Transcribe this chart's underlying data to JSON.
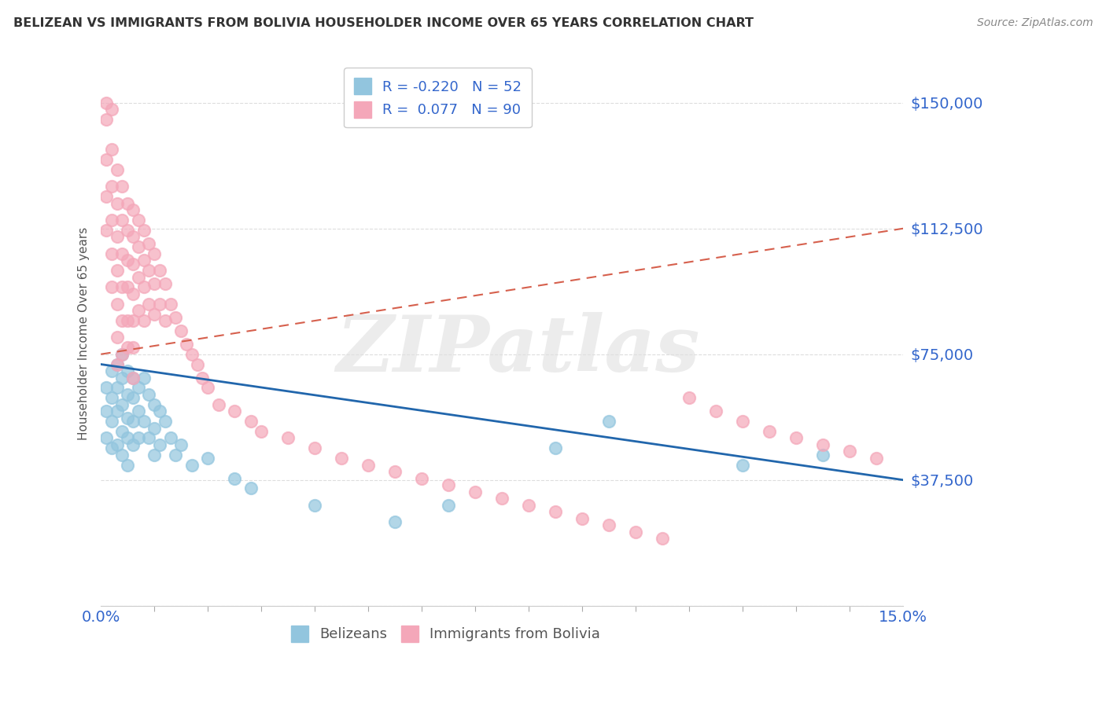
{
  "title": "BELIZEAN VS IMMIGRANTS FROM BOLIVIA HOUSEHOLDER INCOME OVER 65 YEARS CORRELATION CHART",
  "source": "Source: ZipAtlas.com",
  "ylabel": "Householder Income Over 65 years",
  "xlim": [
    0.0,
    0.15
  ],
  "ylim": [
    0,
    162500
  ],
  "yticks": [
    0,
    37500,
    75000,
    112500,
    150000
  ],
  "ytick_labels": [
    "",
    "$37,500",
    "$75,000",
    "$112,500",
    "$150,000"
  ],
  "xtick_labels": [
    "0.0%",
    "15.0%"
  ],
  "blue_R": -0.22,
  "blue_N": 52,
  "pink_R": 0.077,
  "pink_N": 90,
  "blue_color": "#92c5de",
  "pink_color": "#f4a7b9",
  "blue_line_color": "#2166ac",
  "pink_line_color": "#d6604d",
  "label_color": "#3366cc",
  "legend_label_blue": "Belizeans",
  "legend_label_pink": "Immigrants from Bolivia",
  "blue_trend_x": [
    0.0,
    0.15
  ],
  "blue_trend_y": [
    72000,
    37500
  ],
  "pink_trend_x": [
    0.0,
    0.15
  ],
  "pink_trend_y": [
    75000,
    112500
  ],
  "blue_x": [
    0.001,
    0.001,
    0.001,
    0.002,
    0.002,
    0.002,
    0.002,
    0.003,
    0.003,
    0.003,
    0.003,
    0.004,
    0.004,
    0.004,
    0.004,
    0.004,
    0.005,
    0.005,
    0.005,
    0.005,
    0.005,
    0.006,
    0.006,
    0.006,
    0.006,
    0.007,
    0.007,
    0.007,
    0.008,
    0.008,
    0.009,
    0.009,
    0.01,
    0.01,
    0.01,
    0.011,
    0.011,
    0.012,
    0.013,
    0.014,
    0.015,
    0.017,
    0.02,
    0.025,
    0.028,
    0.04,
    0.055,
    0.065,
    0.085,
    0.095,
    0.12,
    0.135
  ],
  "blue_y": [
    65000,
    58000,
    50000,
    70000,
    62000,
    55000,
    47000,
    72000,
    65000,
    58000,
    48000,
    75000,
    68000,
    60000,
    52000,
    45000,
    70000,
    63000,
    56000,
    50000,
    42000,
    68000,
    62000,
    55000,
    48000,
    65000,
    58000,
    50000,
    68000,
    55000,
    63000,
    50000,
    60000,
    53000,
    45000,
    58000,
    48000,
    55000,
    50000,
    45000,
    48000,
    42000,
    44000,
    38000,
    35000,
    30000,
    25000,
    30000,
    47000,
    55000,
    42000,
    45000
  ],
  "pink_x": [
    0.001,
    0.001,
    0.001,
    0.001,
    0.001,
    0.002,
    0.002,
    0.002,
    0.002,
    0.002,
    0.002,
    0.003,
    0.003,
    0.003,
    0.003,
    0.003,
    0.003,
    0.003,
    0.004,
    0.004,
    0.004,
    0.004,
    0.004,
    0.004,
    0.005,
    0.005,
    0.005,
    0.005,
    0.005,
    0.005,
    0.006,
    0.006,
    0.006,
    0.006,
    0.006,
    0.006,
    0.006,
    0.007,
    0.007,
    0.007,
    0.007,
    0.008,
    0.008,
    0.008,
    0.008,
    0.009,
    0.009,
    0.009,
    0.01,
    0.01,
    0.01,
    0.011,
    0.011,
    0.012,
    0.012,
    0.013,
    0.014,
    0.015,
    0.016,
    0.017,
    0.018,
    0.019,
    0.02,
    0.022,
    0.025,
    0.028,
    0.03,
    0.035,
    0.04,
    0.045,
    0.05,
    0.055,
    0.06,
    0.065,
    0.07,
    0.075,
    0.08,
    0.085,
    0.09,
    0.095,
    0.1,
    0.105,
    0.11,
    0.115,
    0.12,
    0.125,
    0.13,
    0.135,
    0.14,
    0.145
  ],
  "pink_y": [
    145000,
    133000,
    122000,
    150000,
    112000,
    148000,
    136000,
    125000,
    115000,
    105000,
    95000,
    130000,
    120000,
    110000,
    100000,
    90000,
    80000,
    72000,
    125000,
    115000,
    105000,
    95000,
    85000,
    75000,
    120000,
    112000,
    103000,
    95000,
    85000,
    77000,
    118000,
    110000,
    102000,
    93000,
    85000,
    77000,
    68000,
    115000,
    107000,
    98000,
    88000,
    112000,
    103000,
    95000,
    85000,
    108000,
    100000,
    90000,
    105000,
    96000,
    87000,
    100000,
    90000,
    96000,
    85000,
    90000,
    86000,
    82000,
    78000,
    75000,
    72000,
    68000,
    65000,
    60000,
    58000,
    55000,
    52000,
    50000,
    47000,
    44000,
    42000,
    40000,
    38000,
    36000,
    34000,
    32000,
    30000,
    28000,
    26000,
    24000,
    22000,
    20000,
    62000,
    58000,
    55000,
    52000,
    50000,
    48000,
    46000,
    44000
  ]
}
